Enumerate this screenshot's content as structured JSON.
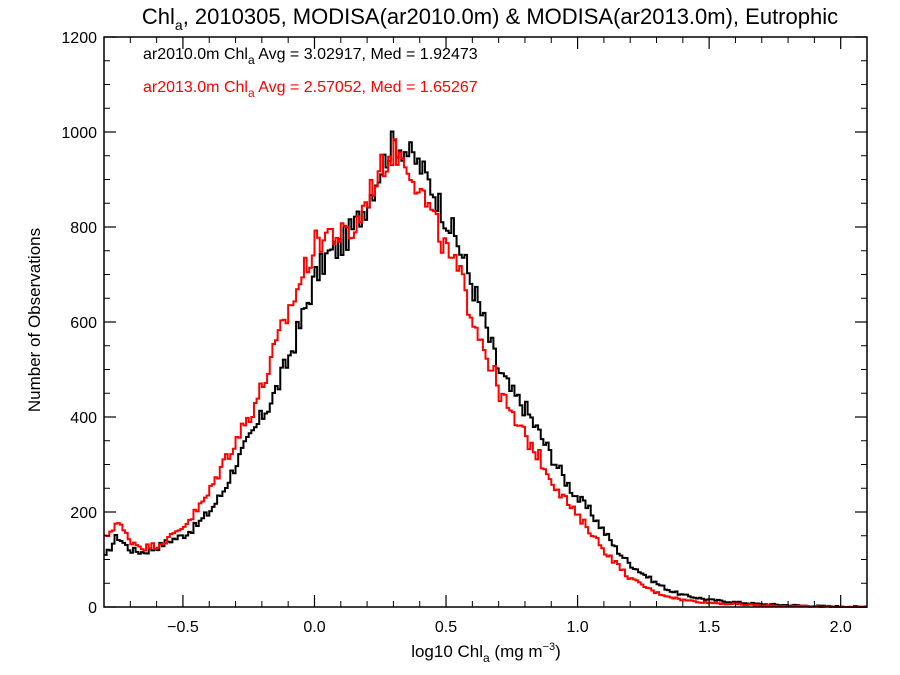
{
  "chart_data": {
    "type": "line",
    "title": {
      "prefix": "Chl",
      "sub": "a",
      "rest": ", 2010305, MODISA(ar2010.0m) & MODISA(ar2013.0m), Eutrophic"
    },
    "xlabel": {
      "prefix": "log10 Chl",
      "sub": "a",
      "middle": " (mg m",
      "sup": "−3",
      "suffix": ")"
    },
    "ylabel": "Number of Observations",
    "xlim": [
      -0.8,
      2.1
    ],
    "ylim": [
      0,
      1200
    ],
    "x_ticks": [
      -0.5,
      0.0,
      0.5,
      1.0,
      1.5,
      2.0
    ],
    "x_tick_labels": [
      "−0.5",
      "0.0",
      "0.5",
      "1.0",
      "1.5",
      "2.0"
    ],
    "y_ticks": [
      0,
      200,
      400,
      600,
      800,
      1000,
      1200
    ],
    "y_tick_labels": [
      "0",
      "200",
      "400",
      "600",
      "800",
      "1000",
      "1200"
    ],
    "grid": false,
    "legend_position": "top-left",
    "series": [
      {
        "color": "#000000",
        "stats": {
          "prefix": "ar2010.0m Chl",
          "sub": "a",
          "rest": " Avg = 3.02917, Med = 1.92473"
        },
        "points": [
          [
            -0.8,
            100
          ],
          [
            -0.75,
            150
          ],
          [
            -0.7,
            120
          ],
          [
            -0.65,
            115
          ],
          [
            -0.6,
            125
          ],
          [
            -0.55,
            140
          ],
          [
            -0.5,
            150
          ],
          [
            -0.45,
            170
          ],
          [
            -0.4,
            200
          ],
          [
            -0.35,
            240
          ],
          [
            -0.3,
            300
          ],
          [
            -0.25,
            350
          ],
          [
            -0.2,
            400
          ],
          [
            -0.15,
            450
          ],
          [
            -0.1,
            520
          ],
          [
            -0.05,
            600
          ],
          [
            0.0,
            690
          ],
          [
            0.05,
            740
          ],
          [
            0.1,
            760
          ],
          [
            0.15,
            800
          ],
          [
            0.2,
            850
          ],
          [
            0.25,
            920
          ],
          [
            0.3,
            980
          ],
          [
            0.35,
            960
          ],
          [
            0.4,
            930
          ],
          [
            0.45,
            880
          ],
          [
            0.5,
            820
          ],
          [
            0.55,
            760
          ],
          [
            0.6,
            680
          ],
          [
            0.65,
            590
          ],
          [
            0.7,
            500
          ],
          [
            0.75,
            450
          ],
          [
            0.8,
            420
          ],
          [
            0.85,
            370
          ],
          [
            0.9,
            320
          ],
          [
            0.95,
            270
          ],
          [
            1.0,
            230
          ],
          [
            1.05,
            200
          ],
          [
            1.1,
            160
          ],
          [
            1.15,
            120
          ],
          [
            1.2,
            90
          ],
          [
            1.25,
            70
          ],
          [
            1.3,
            50
          ],
          [
            1.35,
            35
          ],
          [
            1.4,
            25
          ],
          [
            1.5,
            15
          ],
          [
            1.6,
            10
          ],
          [
            1.7,
            6
          ],
          [
            1.8,
            4
          ],
          [
            1.9,
            2
          ],
          [
            2.0,
            1
          ],
          [
            2.1,
            0
          ]
        ]
      },
      {
        "color": "#ff0000",
        "stats": {
          "prefix": "ar2013.0m Chl",
          "sub": "a",
          "rest": " Avg = 2.57052, Med = 1.65267"
        },
        "points": [
          [
            -0.8,
            140
          ],
          [
            -0.75,
            180
          ],
          [
            -0.7,
            140
          ],
          [
            -0.65,
            125
          ],
          [
            -0.6,
            130
          ],
          [
            -0.55,
            145
          ],
          [
            -0.5,
            170
          ],
          [
            -0.45,
            200
          ],
          [
            -0.4,
            240
          ],
          [
            -0.35,
            300
          ],
          [
            -0.3,
            350
          ],
          [
            -0.25,
            400
          ],
          [
            -0.2,
            460
          ],
          [
            -0.15,
            540
          ],
          [
            -0.1,
            620
          ],
          [
            -0.05,
            690
          ],
          [
            0.0,
            760
          ],
          [
            0.05,
            790
          ],
          [
            0.1,
            780
          ],
          [
            0.15,
            790
          ],
          [
            0.2,
            860
          ],
          [
            0.25,
            920
          ],
          [
            0.3,
            960
          ],
          [
            0.35,
            940
          ],
          [
            0.4,
            880
          ],
          [
            0.45,
            820
          ],
          [
            0.5,
            750
          ],
          [
            0.55,
            700
          ],
          [
            0.6,
            620
          ],
          [
            0.65,
            540
          ],
          [
            0.7,
            460
          ],
          [
            0.75,
            400
          ],
          [
            0.8,
            360
          ],
          [
            0.85,
            320
          ],
          [
            0.9,
            270
          ],
          [
            0.95,
            230
          ],
          [
            1.0,
            190
          ],
          [
            1.05,
            160
          ],
          [
            1.1,
            120
          ],
          [
            1.15,
            90
          ],
          [
            1.2,
            60
          ],
          [
            1.25,
            45
          ],
          [
            1.3,
            30
          ],
          [
            1.35,
            22
          ],
          [
            1.4,
            15
          ],
          [
            1.5,
            9
          ],
          [
            1.6,
            6
          ],
          [
            1.7,
            3
          ],
          [
            1.8,
            2
          ],
          [
            1.9,
            1
          ],
          [
            2.0,
            0
          ],
          [
            2.1,
            0
          ]
        ]
      }
    ]
  }
}
